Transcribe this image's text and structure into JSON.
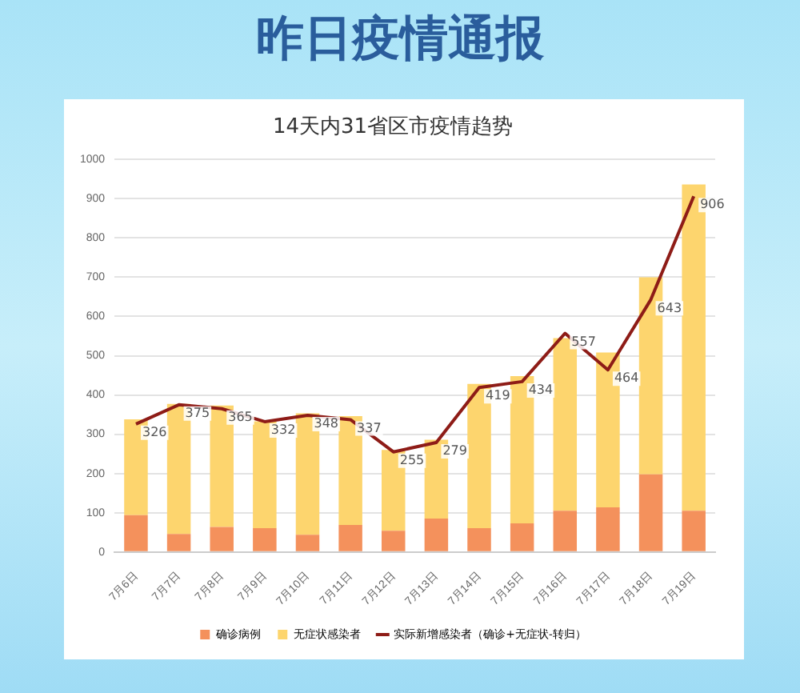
{
  "chart_data": {
    "type": "bar",
    "title": "昨日疫情通报",
    "subtitle": "14天内31省区市疫情趋势",
    "categories": [
      "7月6日",
      "7月7日",
      "7月8日",
      "7月9日",
      "7月10日",
      "7月11日",
      "7月12日",
      "7月13日",
      "7月14日",
      "7月15日",
      "7月16日",
      "7月17日",
      "7月18日",
      "7月19日"
    ],
    "stacked": true,
    "series": [
      {
        "name": "确诊病例",
        "color": "#f4915c",
        "values": [
          94,
          46,
          64,
          61,
          44,
          69,
          54,
          85,
          61,
          73,
          105,
          114,
          198,
          105
        ]
      },
      {
        "name": "无症状感染者",
        "color": "#fdd56e",
        "values": [
          244,
          331,
          309,
          272,
          309,
          277,
          206,
          201,
          367,
          375,
          440,
          394,
          502,
          831
        ]
      },
      {
        "name": "实际新增感染者（确诊+无症状-转归）",
        "type": "line",
        "color": "#8e1c17",
        "values": [
          326,
          375,
          365,
          332,
          348,
          337,
          255,
          279,
          419,
          434,
          557,
          464,
          643,
          906
        ],
        "value_labels": [
          "326",
          "375",
          "365",
          "332",
          "348",
          "337",
          "255",
          "279",
          "419",
          "434",
          "557",
          "464",
          "643",
          "906"
        ]
      }
    ],
    "ylim": [
      0,
      1000
    ],
    "yticks": [
      0,
      100,
      200,
      300,
      400,
      500,
      600,
      700,
      800,
      900,
      1000
    ],
    "grid": "y",
    "legend": "bottom",
    "marker": "none",
    "line_style": "solid"
  }
}
